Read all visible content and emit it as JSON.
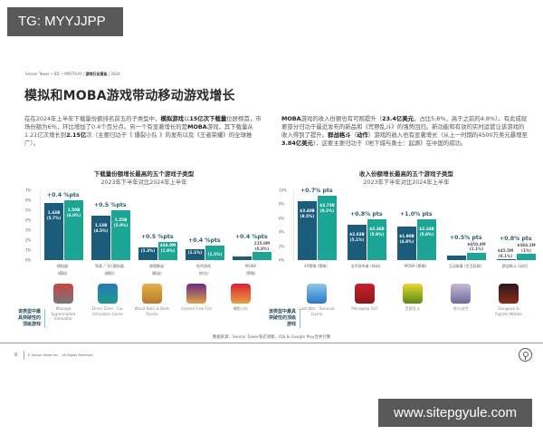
{
  "watermarks": {
    "top": "TG: MYYJJPP",
    "bottom": "www.sitepgyule.com"
  },
  "header": {
    "source_line_prefix": "Sensor Tower • IDC • MISTPLAY | ",
    "source_line_bold": "游戏行业报告",
    "source_line_suffix": " | 2024",
    "title": "模拟和MOBA游戏带动移动游戏增长"
  },
  "paragraphs": {
    "left": [
      {
        "t": "在在2024年上半年下载量份额排名前五的子类型中，",
        "b": false
      },
      {
        "t": "模拟游戏",
        "b": true
      },
      {
        "t": "以",
        "b": false
      },
      {
        "t": "15亿次下载量",
        "b": true
      },
      {
        "t": "位居榜首，市场份额为6%，环比增加了0.4个百分点。另一个有显著增长的是",
        "b": false
      },
      {
        "t": "MOBA",
        "b": true
      },
      {
        "t": "游戏，其下载量从1.21亿次增长到",
        "b": false
      },
      {
        "t": "2.15亿",
        "b": true
      },
      {
        "t": "次（主要归功于《 爆裂小队 》的发布以及《王者荣耀》的全球推广）。",
        "b": false
      }
    ],
    "right": [
      {
        "t": "MOBA",
        "b": true
      },
      {
        "t": "游戏的收入份额也有可观提升（",
        "b": false
      },
      {
        "t": "23.4亿美元",
        "b": true
      },
      {
        "t": "，占比5.8%，高于之前的4.8%）。有此成就要部分归功于最近发布的新品和《荒野乱斗》的强势回归。新功能和有效的实时运营让该游戏的收入得到了提升。",
        "b": false
      },
      {
        "t": "群战格斗",
        "b": true
      },
      {
        "t": "（",
        "b": false
      },
      {
        "t": "动作",
        "b": true
      },
      {
        "t": "）游戏的收入也有显著增长（从上一时期的4500万美元暴增至",
        "b": false
      },
      {
        "t": "3.84亿美元",
        "b": true
      },
      {
        "t": "），这要主要归功于《地下城与勇士：起源》在中国的成功。",
        "b": false
      }
    ]
  },
  "chart_data": [
    {
      "type": "bar",
      "title": "下载量份额增长最高的五个游戏子类型",
      "subtitle": "2023年下半年对比2024年上半年",
      "xlabel": "",
      "ylabel": "下载量份额",
      "ylim": [
        0,
        7
      ],
      "yticks": [
        "0%",
        "1%",
        "2%",
        "3%",
        "4%",
        "5%",
        "6%",
        "7%"
      ],
      "categories": [
        "模拟器 (模拟)",
        "驾驶 / 飞行模拟器 (模拟)",
        "物理解谜 (解谜)",
        "吃鸡游戏 (射击)",
        "MOBA (策略)"
      ],
      "series": [
        {
          "name": "2023年下半年",
          "values": [
            5.7,
            4.5,
            1.3,
            1.1,
            0.4
          ],
          "labels": [
            "1.43B (5.7%)",
            "1.13B (4.5%)",
            "(1.3%)",
            "(1.1%)",
            ""
          ]
        },
        {
          "name": "2024年上半年",
          "values": [
            6.0,
            5.0,
            1.8,
            1.5,
            0.8
          ],
          "labels": [
            "1.50B (6.0%)",
            "1.25B (5.0%)",
            "444.0M (1.8%)",
            "(1.5%)",
            "215.0M (0.8%)"
          ]
        }
      ],
      "deltas": [
        "+0.4 %pts",
        "+0.5 %pts",
        "+0.5 %pts",
        "+0.4 %pts",
        "+0.4 %pts"
      ],
      "grid": false,
      "legend": "none"
    },
    {
      "type": "bar",
      "title": "收入份额增长最高的五个游戏子类型",
      "subtitle": "2023年下半年对比2024年上半年",
      "xlabel": "",
      "ylabel": "收入份额",
      "ylim": [
        0,
        10
      ],
      "yticks": [
        "0%",
        "2%",
        "4%",
        "6%",
        "8%",
        "10%"
      ],
      "categories": [
        "4X策略 (策略)",
        "金币掠夺者 (休闲)",
        "MOBA (策略)",
        "互动故事 (生活风格)",
        "群战格斗 (动作)"
      ],
      "series": [
        {
          "name": "2023年下半年",
          "values": [
            8.5,
            5.1,
            4.8,
            0.6,
            0.1
          ],
          "labels": [
            "$3.40B (8.5%)",
            "$2.02B (5.1%)",
            "$1.90B (4.8%)",
            "",
            "$45.5M (0.1%)"
          ]
        },
        {
          "name": "2024年上半年",
          "values": [
            9.2,
            5.9,
            5.8,
            1.1,
            0.9
          ],
          "labels": [
            "$3.73B (9.2%)",
            "$2.36B (5.9%)",
            "$2.34B (5.8%)",
            "$450.4M (1.1%)",
            "$384.1M (1%)"
          ]
        }
      ],
      "deltas": [
        "+0.7% pts",
        "+0.8% pts",
        "+1.0% pts",
        "+0.5% pts",
        "+0.8% pts"
      ],
      "grid": false,
      "legend": "none"
    }
  ],
  "charts": {
    "left": {
      "title": "下载量份额增长最高的五个游戏子类型",
      "subtitle": "2023年下半年对比2024年上半年",
      "yticks": [
        "7%",
        "6%",
        "5%",
        "4%",
        "3%",
        "2%",
        "1%",
        "0%"
      ],
      "groups": [
        {
          "cat": "模拟器",
          "sub": "(模拟)",
          "delta": "+0.4 %pts",
          "b1": "1.43B",
          "p1": "(5.7%)",
          "b2": "1.50B",
          "p2": "(6.0%)"
        },
        {
          "cat": "驾驶 / 飞行模拟器",
          "sub": "(模拟)",
          "delta": "+0.5 %pts",
          "b1": "1.13B",
          "p1": "(4.5%)",
          "b2": "1.25B",
          "p2": "(5.0%)"
        },
        {
          "cat": "物理解谜",
          "sub": "(解谜)",
          "delta": "+0.5 %pts",
          "b1": "",
          "p1": "(1.3%)",
          "b2": "444.0M",
          "p2": "(1.8%)"
        },
        {
          "cat": "吃鸡游戏",
          "sub": "(射击)",
          "delta": "+0.4 %pts",
          "b1": "",
          "p1": "(1.1%)",
          "b2": "",
          "p2": "(1.5%)"
        },
        {
          "cat": "MOBA",
          "sub": "(策略)",
          "delta": "+0.4 %pts",
          "b1": "",
          "p1": "",
          "b2": "215.0M",
          "p2": "(0.8%)"
        }
      ]
    },
    "right": {
      "title": "收入份额增长最高的五个游戏子类型",
      "subtitle": "2023年下半年对比2024年上半年",
      "yticks": [
        "10%",
        "8%",
        "6%",
        "4%",
        "2%",
        "0%"
      ],
      "groups": [
        {
          "cat": "4X策略 (策略)",
          "delta": "+0.7% pts",
          "b1": "$3.40B",
          "p1": "(8.5%)",
          "b2": "$3.73B",
          "p2": "(9.2%)"
        },
        {
          "cat": "金币掠夺者 (休闲)",
          "delta": "+0.8% pts",
          "b1": "$2.02B",
          "p1": "(5.1%)",
          "b2": "$2.36B",
          "p2": "(5.9%)"
        },
        {
          "cat": "MOBA (策略)",
          "delta": "+1.0% pts",
          "b1": "$1.90B",
          "p1": "(4.8%)",
          "b2": "$2.34B",
          "p2": "(5.8%)"
        },
        {
          "cat": "互动故事 (生活风格)",
          "delta": "+0.5% pts",
          "b1": "",
          "p1": "",
          "b2": "$450.4M",
          "p2": "(1.1%)"
        },
        {
          "cat": "群战格斗 (动作)",
          "delta": "+0.8% pts",
          "b1": "$45.5M",
          "p1": "(0.1%)",
          "b2": "$384.1M",
          "p2": "(1%)"
        }
      ]
    }
  },
  "top_games": {
    "side_label": "该类型中最具突破性的顶级游戏",
    "left": [
      "Manage Supermarket Simulator",
      "Drive Zone : Car Simulator Game",
      "Wood Nuts & Bolts Puzzle",
      "Garena Free Fire",
      "爆裂小队"
    ],
    "right": [
      "Last War : Survival Game",
      "Monopoly GO!",
      "荒野乱斗",
      "恋与深空",
      "Dungeon & Fighter:Mobile"
    ]
  },
  "footer": {
    "data_source": "数据来源：Sensor Tower商店洞察，iOS & Google Play合并计算",
    "page_number": "8",
    "copyright": "© Sensor Tower Inc. - All Rights Reserved",
    "logo_icon": "sensor-tower-logo-icon"
  },
  "colors": {
    "h1_bar": "#1a5c7a",
    "h2_bar": "#1aa594",
    "delta_text": "#2c5d6a",
    "watermark_bg": "#595959"
  }
}
